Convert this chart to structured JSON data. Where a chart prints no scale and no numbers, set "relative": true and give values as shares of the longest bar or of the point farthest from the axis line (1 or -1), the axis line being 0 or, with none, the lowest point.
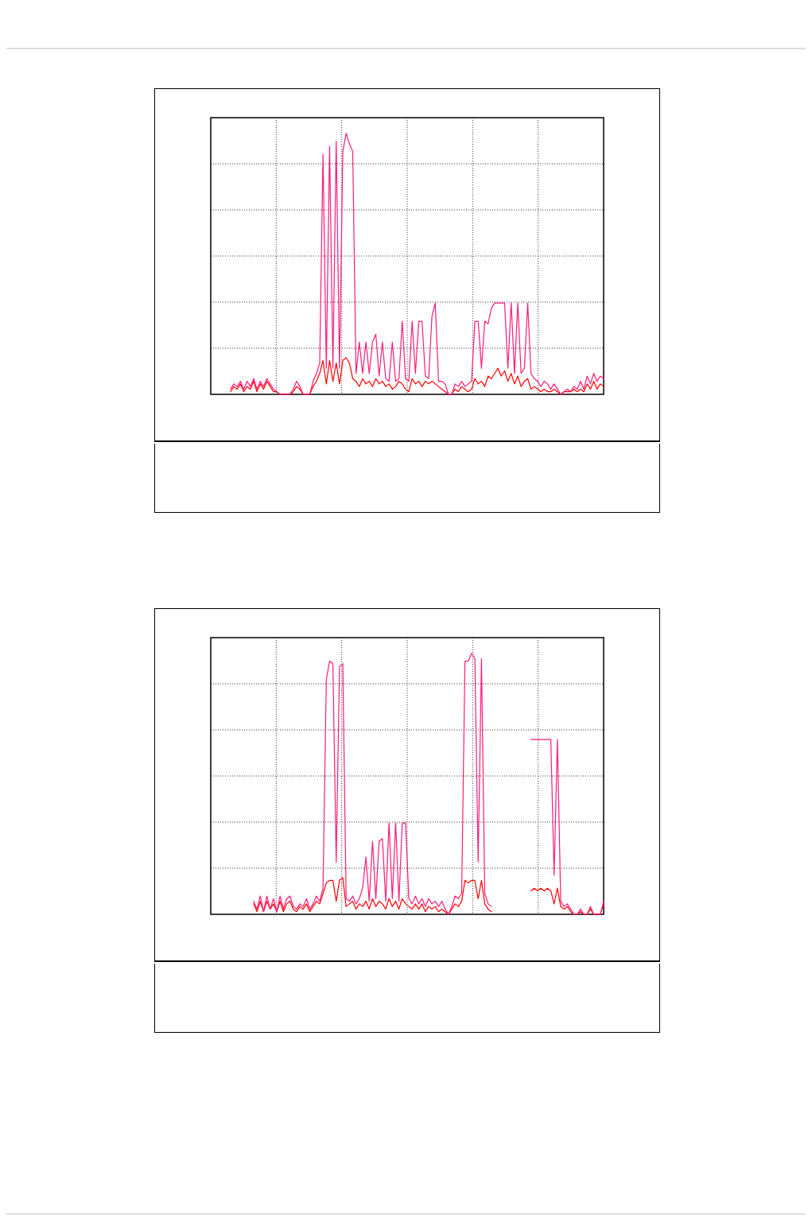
{
  "chart_data": [
    {
      "type": "line",
      "relative": true,
      "grid": true,
      "legend": false,
      "categories": [
        null,
        null,
        null,
        null,
        null,
        null,
        null,
        null,
        null,
        null,
        null,
        null,
        null,
        null,
        null,
        null,
        null,
        null,
        null,
        null,
        null,
        null,
        null,
        null,
        null,
        null,
        null,
        null,
        null,
        null,
        null,
        null,
        null,
        null,
        null,
        null,
        null,
        null,
        null,
        null,
        null,
        null,
        null,
        null,
        null,
        null,
        null,
        null,
        null,
        null,
        null,
        null,
        null,
        null,
        null,
        null,
        null,
        null,
        null,
        null,
        null,
        null,
        null,
        null,
        null,
        null,
        null,
        null,
        null,
        null,
        null,
        null,
        null,
        null,
        null,
        null,
        null,
        null,
        null,
        null,
        null,
        null,
        null,
        null,
        null,
        null,
        null,
        null,
        null,
        null,
        null,
        null,
        null,
        null,
        null,
        null,
        null,
        null,
        null,
        null,
        null,
        null,
        null,
        null,
        null,
        null,
        null,
        null,
        null,
        null,
        null,
        null,
        null,
        null,
        null,
        null,
        null,
        null,
        null,
        null
      ],
      "series": [
        {
          "color": "#ff1a7a",
          "values": [
            null,
            null,
            null,
            null,
            null,
            null,
            0.02,
            0.04,
            0.03,
            0.05,
            0.02,
            0.05,
            0.03,
            0.06,
            0.02,
            0.05,
            0.03,
            0.06,
            0.04,
            0.02,
            0.01,
            0,
            0,
            0,
            0,
            0.02,
            0.05,
            0.03,
            0,
            0,
            0,
            0.05,
            0.08,
            0.12,
            0.92,
            0.1,
            0.95,
            0.1,
            0.97,
            0.1,
            0.93,
            1.0,
            0.96,
            0.93,
            0.08,
            0.2,
            0.08,
            0.2,
            0.08,
            0.2,
            0.23,
            0.07,
            0.2,
            0.06,
            0.05,
            0.2,
            0.05,
            0.06,
            0.28,
            0.06,
            0.05,
            0.28,
            0.08,
            0.28,
            0.28,
            0.07,
            0.06,
            0.3,
            0.35,
            0.05,
            0.05,
            0.04,
            0,
            0,
            0.04,
            0.03,
            0.05,
            0.03,
            0.04,
            0.05,
            0.28,
            0.28,
            0.1,
            0.28,
            0.27,
            0.33,
            0.35,
            0.35,
            0.35,
            0.35,
            0.1,
            0.35,
            0.08,
            0.35,
            0.08,
            0.1,
            0.35,
            0.08,
            0.06,
            0.05,
            0.03,
            0.05,
            0.04,
            0.02,
            0.04,
            0.02,
            0,
            0.01,
            0.02,
            0.01,
            0.03,
            0.02,
            0.05,
            0.02,
            0.07,
            0.04,
            0.08,
            0.05,
            0.07,
            0.06
          ]
        },
        {
          "color": "#ff0000",
          "values": [
            null,
            null,
            null,
            null,
            null,
            null,
            0.01,
            0.03,
            0.02,
            0.04,
            0.01,
            0.03,
            0.02,
            0.05,
            0.01,
            0.04,
            0.02,
            0.05,
            0.03,
            0.01,
            0.01,
            0,
            0,
            0,
            0,
            0.01,
            0.03,
            0.02,
            0,
            0,
            0,
            0.03,
            0.05,
            0.08,
            0.13,
            0.04,
            0.13,
            0.05,
            0.12,
            0.04,
            0.13,
            0.14,
            0.12,
            0.06,
            0.05,
            0.03,
            0.06,
            0.04,
            0.05,
            0.03,
            0.06,
            0.04,
            0.05,
            0.03,
            0.04,
            0.02,
            0.03,
            0.05,
            0.04,
            0.02,
            0.01,
            0.06,
            0.04,
            0.05,
            0.03,
            0.05,
            0.04,
            0.05,
            0.04,
            0.03,
            0.02,
            0.01,
            0,
            0,
            0.02,
            0.01,
            0.03,
            0.02,
            0.01,
            0.02,
            0.06,
            0.04,
            0.05,
            0.03,
            0.07,
            0.06,
            0.08,
            0.1,
            0.07,
            0.09,
            0.05,
            0.08,
            0.04,
            0.07,
            0.03,
            0.05,
            0.06,
            0.02,
            0.03,
            0.02,
            0.01,
            0.02,
            0.01,
            0.01,
            0.02,
            0.01,
            0,
            0.01,
            0.01,
            0.01,
            0.02,
            0.01,
            0.02,
            0.01,
            0.04,
            0.02,
            0.05,
            0.02,
            0.04,
            0.03
          ]
        }
      ]
    },
    {
      "type": "line",
      "relative": true,
      "grid": true,
      "legend": false,
      "categories": [
        null,
        null,
        null,
        null,
        null,
        null,
        null,
        null,
        null,
        null,
        null,
        null,
        null,
        null,
        null,
        null,
        null,
        null,
        null,
        null,
        null,
        null,
        null,
        null,
        null,
        null,
        null,
        null,
        null,
        null,
        null,
        null,
        null,
        null,
        null,
        null,
        null,
        null,
        null,
        null,
        null,
        null,
        null,
        null,
        null,
        null,
        null,
        null,
        null,
        null,
        null,
        null,
        null,
        null,
        null,
        null,
        null,
        null,
        null,
        null,
        null,
        null,
        null,
        null,
        null,
        null,
        null,
        null,
        null,
        null,
        null,
        null,
        null,
        null,
        null,
        null,
        null,
        null,
        null,
        null,
        null,
        null,
        null,
        null,
        null,
        null,
        null,
        null,
        null,
        null,
        null,
        null,
        null,
        null,
        null,
        null,
        null,
        null,
        null,
        null,
        null,
        null,
        null,
        null,
        null,
        null,
        null,
        null,
        null,
        null,
        null,
        null,
        null,
        null,
        null,
        null,
        null,
        null,
        null,
        null
      ],
      "series": [
        {
          "color": "#ff1a7a",
          "values": [
            null,
            null,
            null,
            null,
            null,
            null,
            null,
            null,
            null,
            null,
            null,
            null,
            null,
            0.05,
            0.02,
            0.07,
            0.01,
            0.07,
            0.02,
            0.06,
            0.01,
            0.07,
            0.02,
            0.06,
            0.07,
            0.03,
            0.02,
            0.04,
            0.03,
            0.06,
            0.02,
            0.04,
            0.07,
            0.05,
            0.1,
            0.9,
            0.97,
            0.96,
            0.2,
            0.95,
            0.96,
            0.06,
            0.05,
            0.07,
            0.04,
            0.06,
            0.1,
            0.22,
            0.05,
            0.28,
            0.06,
            0.28,
            0.29,
            0.05,
            0.35,
            0.06,
            0.35,
            0.05,
            0.35,
            0.35,
            0.06,
            0.04,
            0.07,
            0.04,
            0.06,
            0.03,
            0.06,
            0.04,
            0.05,
            0.03,
            0.05,
            0.02,
            0,
            0.03,
            0.07,
            0.06,
            0.08,
            0.97,
            0.97,
            1.0,
            0.98,
            0.2,
            0.98,
            0.08,
            0.04,
            0.03,
            null,
            null,
            null,
            null,
            null,
            null,
            null,
            null,
            null,
            null,
            null,
            0.67,
            0.67,
            0.67,
            0.67,
            0.67,
            0.67,
            0.67,
            0.15,
            0.67,
            0.05,
            0.03,
            0.04,
            0.02,
            0,
            0,
            0.02,
            0,
            0,
            0.03,
            0,
            0,
            0,
            0.05
          ]
        },
        {
          "color": "#ff0000",
          "values": [
            null,
            null,
            null,
            null,
            null,
            null,
            null,
            null,
            null,
            null,
            null,
            null,
            null,
            0.04,
            0.01,
            0.05,
            0.01,
            0.05,
            0.02,
            0.04,
            0.01,
            0.05,
            0.01,
            0.04,
            0.05,
            0.02,
            0.01,
            0.03,
            0.02,
            0.04,
            0.01,
            0.03,
            0.05,
            0.04,
            0.08,
            0.12,
            0.13,
            0.13,
            0.05,
            0.13,
            0.14,
            0.03,
            0.04,
            0.05,
            0.02,
            0.04,
            0.03,
            0.05,
            0.02,
            0.06,
            0.03,
            0.05,
            0.04,
            0.02,
            0.06,
            0.03,
            0.05,
            0.02,
            0.06,
            0.04,
            0.03,
            0.02,
            0.04,
            0.02,
            0.04,
            0.01,
            0.03,
            0.02,
            0.03,
            0.01,
            0.02,
            0.01,
            0,
            0.02,
            0.04,
            0.03,
            0.05,
            0.13,
            0.12,
            0.13,
            0.13,
            0.06,
            0.13,
            0.04,
            0.02,
            0.01,
            null,
            null,
            null,
            null,
            null,
            null,
            null,
            null,
            null,
            null,
            null,
            0.09,
            0.1,
            0.09,
            0.1,
            0.09,
            0.1,
            0.09,
            0.04,
            0.1,
            0.03,
            0.02,
            0.03,
            0.01,
            0,
            0,
            0.01,
            0,
            0,
            0.02,
            0,
            0,
            0,
            0.04
          ]
        }
      ]
    }
  ]
}
